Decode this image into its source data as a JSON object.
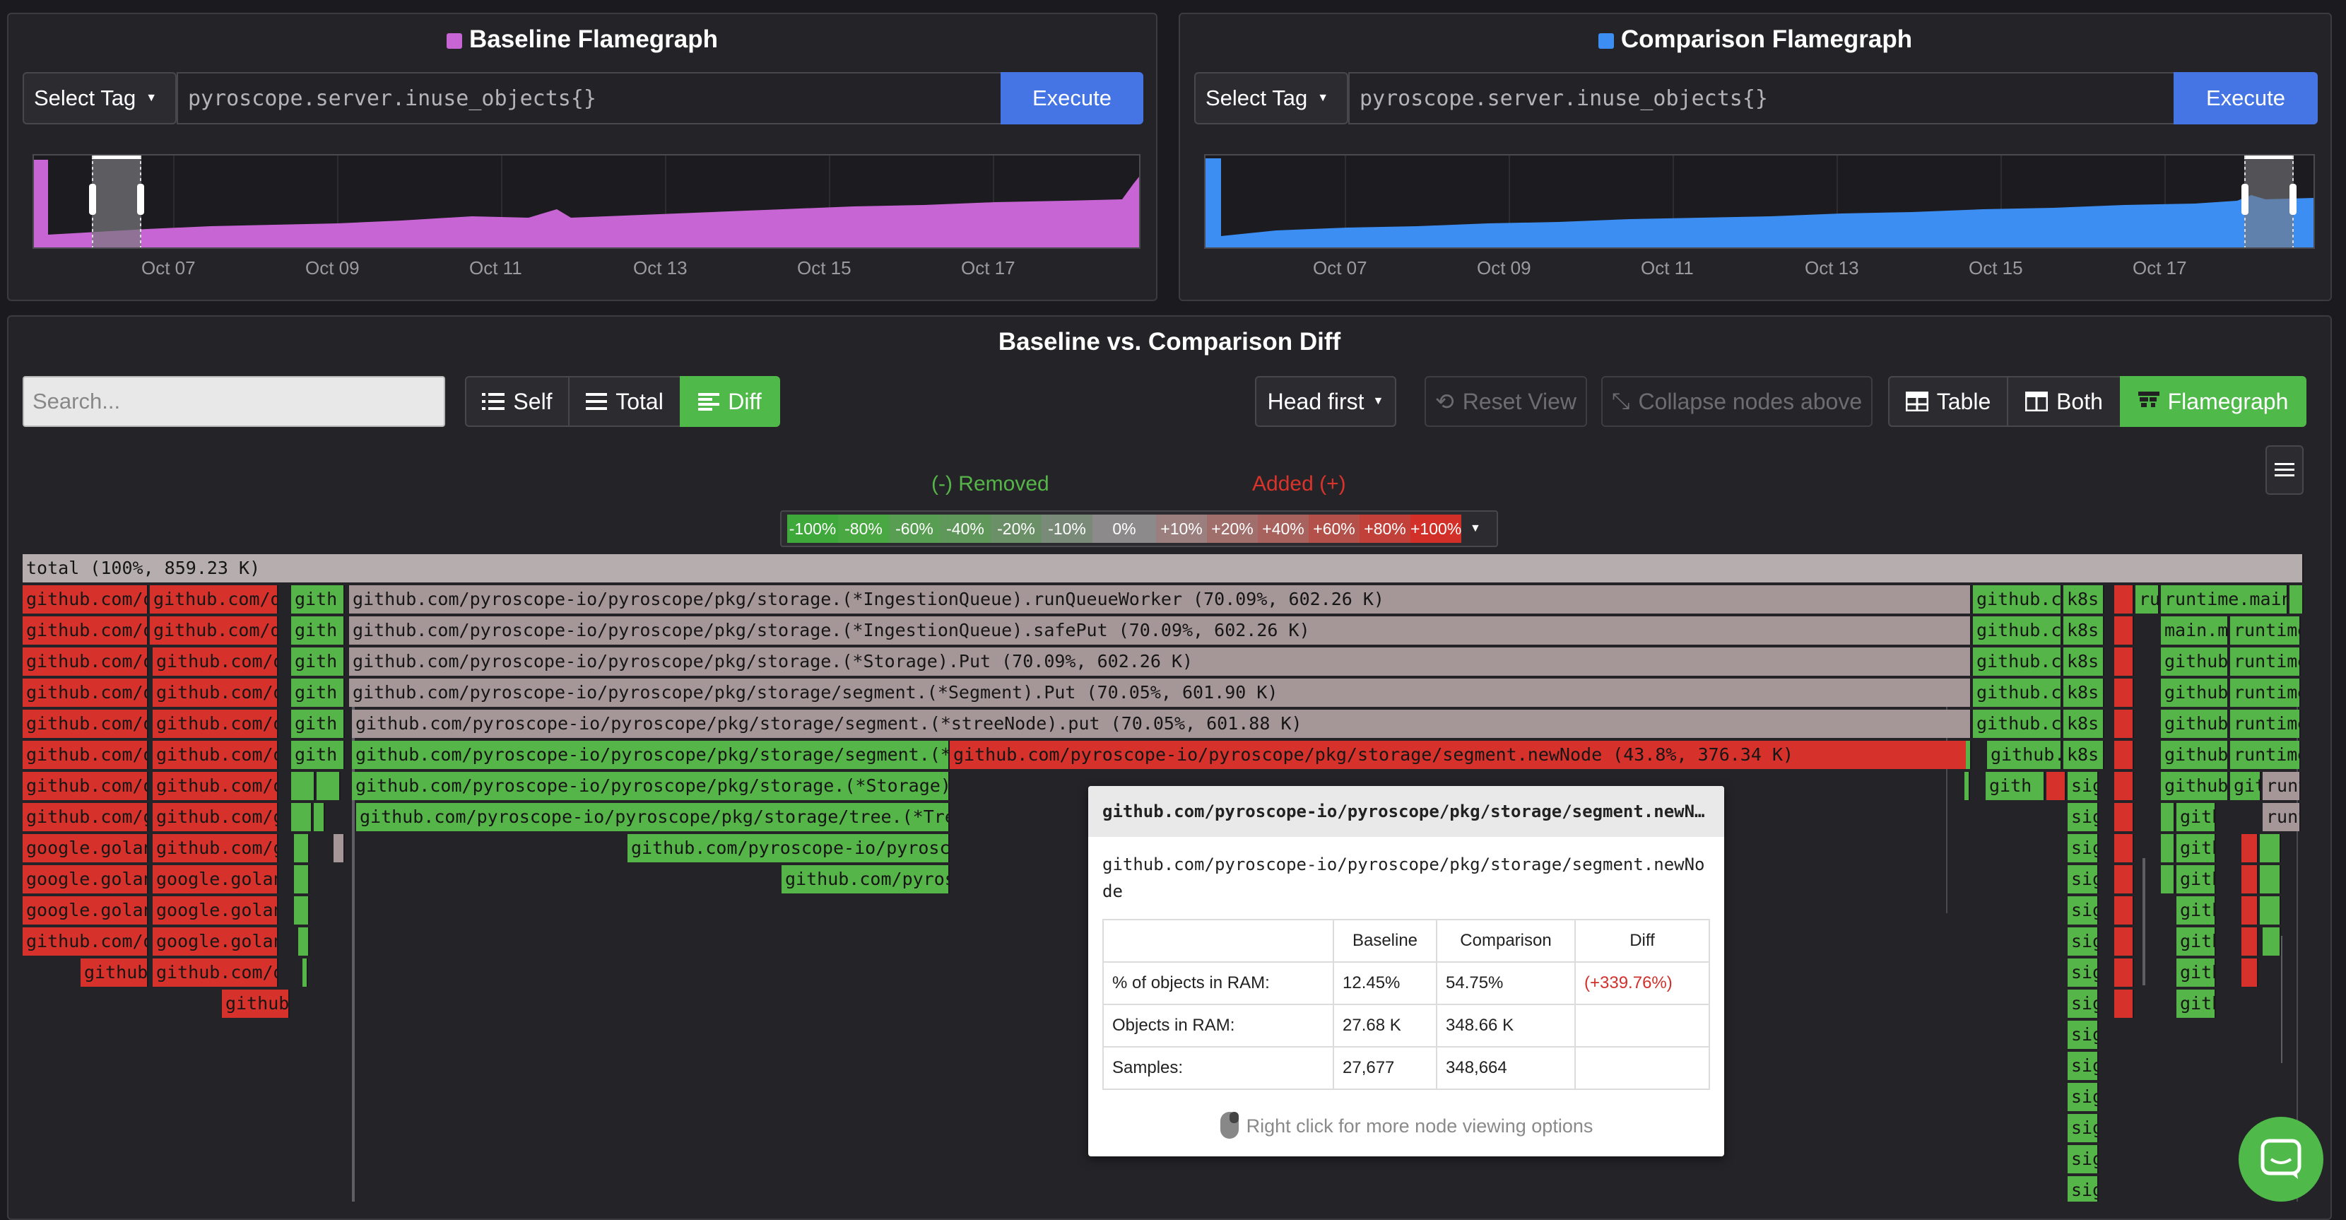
{
  "baseline": {
    "title": "Baseline Flamegraph",
    "swatch_color": "#c865d4",
    "select_tag_label": "Select Tag",
    "query": "pyroscope.server.inuse_objects{}",
    "execute_label": "Execute",
    "ticks": [
      "Oct 07",
      "Oct 09",
      "Oct 11",
      "Oct 13",
      "Oct 15",
      "Oct 17"
    ]
  },
  "comparison": {
    "title": "Comparison Flamegraph",
    "swatch_color": "#3d8ef2",
    "select_tag_label": "Select Tag",
    "query": "pyroscope.server.inuse_objects{}",
    "execute_label": "Execute",
    "ticks": [
      "Oct 07",
      "Oct 09",
      "Oct 11",
      "Oct 13",
      "Oct 15",
      "Oct 17"
    ]
  },
  "diff": {
    "title": "Baseline vs. Comparison Diff",
    "search_placeholder": "Search...",
    "view_modes": [
      "Self",
      "Total",
      "Diff"
    ],
    "active_view_mode": "Diff",
    "head_first_label": "Head first",
    "reset_view_label": "Reset View",
    "collapse_label": "Collapse nodes above",
    "layout_modes": [
      "Table",
      "Both",
      "Flamegraph"
    ],
    "active_layout_mode": "Flamegraph",
    "legend_removed": "(-) Removed",
    "legend_added": "Added (+)",
    "legend_scale": [
      "-100%",
      "-80%",
      "-60%",
      "-40%",
      "-20%",
      "-10%",
      "0%",
      "+10%",
      "+20%",
      "+40%",
      "+60%",
      "+80%",
      "+100%"
    ],
    "legend_colors": [
      "#3fa83a",
      "#4aa843",
      "#589e52",
      "#5f965a",
      "#6b8f67",
      "#7a8a78",
      "#8d8a8b",
      "#9a7f7e",
      "#a06f6c",
      "#a8625d",
      "#b35049",
      "#c2403a",
      "#d22f28"
    ]
  },
  "flamegraph": {
    "total_label": "total (100%, 859.23 K)",
    "row1": [
      "github.com/dg",
      "github.com/dgr",
      "gith",
      "github.com/pyroscope-io/pyroscope/pkg/storage.(*IngestionQueue).runQueueWorker (70.09%, 602.26 K)",
      "github.co",
      "k8s",
      "ru",
      "runtime.main ("
    ],
    "row2": [
      "github.com/d",
      "github.com/dg",
      "gith",
      "github.com/pyroscope-io/pyroscope/pkg/storage.(*IngestionQueue).safePut (70.09%, 602.26 K)",
      "github.co",
      "k8s",
      "main.m",
      "runtime"
    ],
    "row3": [
      "github.com/d",
      "github.com/dg",
      "gith",
      "github.com/pyroscope-io/pyroscope/pkg/storage.(*Storage).Put (70.09%, 602.26 K)",
      "github.co",
      "k8s",
      "github",
      "runtime"
    ],
    "row4": [
      "github.com/d",
      "github.com/dg",
      "gith",
      "github.com/pyroscope-io/pyroscope/pkg/storage/segment.(*Segment).Put (70.05%, 601.90 K)",
      "github.co",
      "k8s",
      "github",
      "runtime"
    ],
    "row5": [
      "github.com/d",
      "github.com/dg",
      "gith",
      "github.com/pyroscope-io/pyroscope/pkg/storage/segment.(*streeNode).put (70.05%, 601.88 K)",
      "github.co",
      "k8s",
      "github",
      "runtime"
    ],
    "row6": [
      "github.com/d",
      "github.com/dg",
      "gith",
      "github.com/pyroscope-io/pyroscope/pkg/storage/segment.(*Se",
      "github.com/pyroscope-io/pyroscope/pkg/storage/segment.newNode (43.8%, 376.34 K)",
      "github.co",
      "k8s",
      "github",
      "runtime"
    ],
    "row7": [
      "github.com/d",
      "github.com/dg",
      "github.com/pyroscope-io/pyroscope/pkg/storage.(*Storage).P",
      "gith",
      "sig",
      "github",
      "gith",
      "runt"
    ],
    "row8": [
      "github.com/g",
      "github.com/go",
      "github.com/pyroscope-io/pyroscope/pkg/storage/tree.(*Tree)",
      "sig",
      "gith",
      "runt"
    ],
    "row9": [
      "google.golan",
      "github.com/go",
      "github.com/pyroscope-io/pyrosco",
      "sig",
      "gith"
    ],
    "row10": [
      "google.golan",
      "google.golang",
      "github.com/pyros",
      "sig",
      "gith"
    ],
    "row11": [
      "google.golan",
      "google.golang",
      "sig",
      "gith"
    ],
    "row12": [
      "github.com/d",
      "google.golang",
      "sig",
      "gith"
    ],
    "row13": [
      "github",
      "github.com/dg",
      "sig",
      "gith"
    ],
    "row14": [
      "github",
      "sig",
      "gith"
    ],
    "sig_label": "sig"
  },
  "tooltip": {
    "title": "github.com/pyroscope-io/pyroscope/pkg/storage/segment.newN…",
    "fullname": "github.com/pyroscope-io/pyroscope/pkg/storage/segment.newNode",
    "headers": [
      "",
      "Baseline",
      "Comparison",
      "Diff"
    ],
    "rows": [
      [
        "% of objects in RAM:",
        "12.45%",
        "54.75%",
        "(+339.76%)"
      ],
      [
        "Objects in RAM:",
        "27.68 K",
        "348.66 K",
        ""
      ],
      [
        "Samples:",
        "27,677",
        "348,664",
        ""
      ]
    ],
    "hint": "Right click for more node viewing options",
    "diff_color": "#d0312b"
  }
}
